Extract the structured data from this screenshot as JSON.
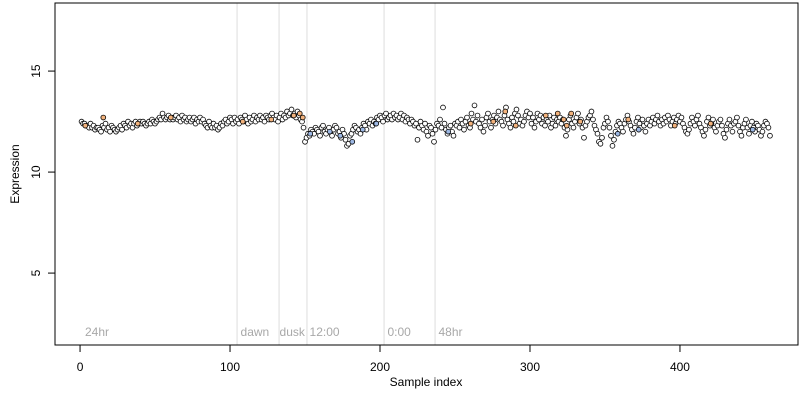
{
  "chart_data": {
    "type": "scatter",
    "x_label": "Sample index",
    "y_label": "Expression",
    "xlim": [
      -16.7,
      478.7
    ],
    "ylim": [
      1.44,
      18.37
    ],
    "xticks": [
      0,
      100,
      200,
      300,
      400
    ],
    "yticks": [
      5,
      10,
      15
    ],
    "vlines": [
      104.7,
      132.7,
      151.3,
      202.7,
      236.7
    ],
    "vline_color": "#dddddd",
    "annotations": [
      {
        "x": 3.3,
        "text": "24hr"
      },
      {
        "x": 107,
        "text": "dawn"
      },
      {
        "x": 133,
        "text": "dusk"
      },
      {
        "x": 153,
        "text": "12:00"
      },
      {
        "x": 205,
        "text": "0:00"
      },
      {
        "x": 239,
        "text": "48hr"
      }
    ],
    "series": [
      {
        "color": "#ffffff",
        "x": [
          1,
          2,
          3,
          4,
          5,
          6,
          7,
          8,
          9,
          10,
          11,
          12,
          13,
          14,
          15,
          16,
          17,
          18,
          19,
          20,
          21,
          22,
          23,
          24,
          25,
          26,
          27,
          28,
          29,
          30,
          31,
          32,
          33,
          34,
          35,
          36,
          37,
          38,
          39,
          40,
          41,
          42,
          43,
          44,
          45,
          46,
          47,
          48,
          49,
          50,
          51,
          52,
          53,
          54,
          55,
          56,
          57,
          58,
          59,
          60,
          61,
          62,
          63,
          64,
          65,
          66,
          67,
          68,
          69,
          70,
          71,
          72,
          73,
          74,
          75,
          76,
          77,
          78,
          79,
          80,
          81,
          82,
          83,
          84,
          85,
          86,
          87,
          88,
          89,
          90,
          91,
          92,
          93,
          94,
          95,
          96,
          97,
          98,
          99,
          100,
          101,
          102,
          103,
          104,
          105,
          106,
          107,
          108,
          109,
          110,
          111,
          112,
          113,
          114,
          115,
          116,
          117,
          118,
          119,
          120,
          121,
          122,
          123,
          124,
          125,
          126,
          127,
          128,
          129,
          130,
          131,
          132,
          133,
          134,
          135,
          136,
          137,
          138,
          139,
          140,
          141,
          142,
          143,
          144,
          145,
          146,
          147,
          148,
          149,
          150,
          151,
          152,
          153,
          154,
          155,
          156,
          157,
          158,
          159,
          160,
          161,
          162,
          163,
          164,
          165,
          166,
          167,
          168,
          169,
          170,
          171,
          172,
          173,
          174,
          175,
          176,
          177,
          178,
          179,
          180,
          181,
          182,
          183,
          184,
          185,
          186,
          187,
          188,
          189,
          190,
          191,
          192,
          193,
          194,
          195,
          196,
          197,
          198,
          199,
          200,
          201,
          202,
          203,
          204,
          205,
          206,
          207,
          208,
          209,
          210,
          211,
          212,
          213,
          214,
          215,
          216,
          217,
          218,
          219,
          220,
          221,
          222,
          223,
          224,
          225,
          226,
          227,
          228,
          229,
          230,
          231,
          232,
          233,
          234,
          235,
          236,
          237,
          238,
          239,
          240,
          241,
          242,
          243,
          244,
          245,
          246,
          247,
          248,
          249,
          250,
          251,
          252,
          253,
          254,
          255,
          256,
          257,
          258,
          259,
          260,
          261,
          262,
          263,
          264,
          265,
          266,
          267,
          268,
          269,
          270,
          271,
          272,
          273,
          274,
          275,
          276,
          277,
          278,
          279,
          280,
          281,
          282,
          283,
          284,
          285,
          286,
          287,
          288,
          289,
          290,
          291,
          292,
          293,
          294,
          295,
          296,
          297,
          298,
          299,
          300,
          301,
          302,
          303,
          304,
          305,
          306,
          307,
          308,
          309,
          310,
          311,
          312,
          313,
          314,
          315,
          316,
          317,
          318,
          319,
          320,
          321,
          322,
          323,
          324,
          325,
          326,
          327,
          328,
          329,
          330,
          331,
          332,
          333,
          334,
          335,
          336,
          337,
          338,
          339,
          340,
          341,
          342,
          343,
          344,
          345,
          346,
          347,
          348,
          349,
          350,
          351,
          352,
          353,
          354,
          355,
          356,
          357,
          358,
          359,
          360,
          361,
          362,
          363,
          364,
          365,
          366,
          367,
          368,
          369,
          370,
          371,
          372,
          373,
          374,
          375,
          376,
          377,
          378,
          379,
          380,
          381,
          382,
          383,
          384,
          385,
          386,
          387,
          388,
          389,
          390,
          391,
          392,
          393,
          394,
          395,
          396,
          397,
          398,
          399,
          400,
          401,
          402,
          403,
          404,
          405,
          406,
          407,
          408,
          409,
          410,
          411,
          412,
          413,
          414,
          415,
          416,
          417,
          418,
          419,
          420,
          421,
          422,
          423,
          424,
          425,
          426,
          427,
          428,
          429,
          430,
          431,
          432,
          433,
          434,
          435,
          436,
          437,
          438,
          439,
          440,
          441,
          442,
          443,
          444,
          445,
          446,
          447,
          448,
          449,
          450,
          451,
          452,
          453,
          454,
          455,
          456,
          457,
          458,
          459,
          460
        ],
        "values": [
          12.5,
          12.4,
          12.4,
          12.3,
          12.3,
          12.2,
          12.4,
          12.2,
          12.3,
          12.1,
          12.2,
          12.2,
          12.1,
          12.0,
          12.3,
          12.2,
          12.4,
          12.1,
          12.2,
          12.0,
          12.3,
          12.2,
          12.1,
          12.0,
          12.1,
          12.2,
          12.3,
          12.1,
          12.4,
          12.3,
          12.2,
          12.5,
          12.3,
          12.4,
          12.2,
          12.4,
          12.5,
          12.3,
          12.4,
          12.5,
          12.4,
          12.5,
          12.4,
          12.3,
          12.4,
          12.5,
          12.4,
          12.6,
          12.5,
          12.4,
          12.5,
          12.6,
          12.7,
          12.6,
          12.9,
          12.7,
          12.6,
          12.7,
          12.8,
          12.6,
          12.7,
          12.6,
          12.7,
          12.8,
          12.6,
          12.7,
          12.5,
          12.8,
          12.6,
          12.7,
          12.5,
          12.6,
          12.7,
          12.5,
          12.6,
          12.7,
          12.4,
          12.6,
          12.5,
          12.7,
          12.5,
          12.6,
          12.4,
          12.3,
          12.2,
          12.5,
          12.3,
          12.2,
          12.4,
          12.2,
          12.3,
          12.1,
          12.2,
          12.4,
          12.3,
          12.5,
          12.6,
          12.4,
          12.5,
          12.7,
          12.6,
          12.4,
          12.7,
          12.5,
          12.6,
          12.4,
          12.7,
          12.6,
          12.5,
          12.8,
          12.6,
          12.4,
          12.7,
          12.5,
          12.6,
          12.8,
          12.5,
          12.7,
          12.6,
          12.8,
          12.6,
          12.7,
          12.5,
          12.8,
          12.7,
          12.6,
          12.8,
          12.9,
          12.7,
          12.6,
          12.8,
          12.5,
          12.7,
          12.9,
          12.6,
          12.8,
          12.7,
          13.0,
          12.8,
          12.9,
          13.1,
          12.8,
          12.9,
          12.7,
          13.0,
          12.8,
          12.6,
          12.5,
          12.2,
          11.5,
          11.7,
          11.9,
          11.8,
          12.1,
          12.0,
          11.9,
          12.2,
          12.1,
          12.0,
          11.8,
          12.2,
          12.3,
          12.0,
          11.9,
          12.1,
          12.2,
          12.0,
          11.8,
          12.1,
          12.3,
          12.2,
          11.9,
          12.0,
          11.7,
          12.1,
          11.9,
          11.6,
          11.3,
          11.4,
          11.8,
          11.9,
          12.1,
          12.3,
          12.2,
          12.0,
          12.1,
          11.9,
          12.2,
          12.4,
          12.3,
          12.1,
          12.5,
          12.4,
          12.6,
          12.3,
          12.5,
          12.4,
          12.7,
          12.6,
          12.8,
          12.7,
          12.5,
          12.8,
          12.9,
          12.6,
          12.7,
          12.8,
          12.6,
          12.9,
          12.7,
          12.8,
          12.6,
          12.7,
          12.9,
          12.6,
          12.8,
          12.5,
          12.7,
          12.6,
          12.4,
          12.6,
          12.5,
          12.3,
          12.4,
          11.6,
          12.2,
          12.5,
          12.3,
          12.1,
          12.4,
          12.0,
          11.8,
          12.3,
          12.2,
          11.9,
          11.5,
          12.1,
          12.4,
          12.3,
          12.6,
          12.2,
          13.2,
          12.4,
          12.1,
          11.9,
          12.2,
          12.3,
          12.0,
          11.8,
          12.4,
          12.3,
          12.5,
          12.2,
          12.6,
          12.4,
          12.1,
          12.5,
          12.7,
          12.3,
          12.2,
          12.9,
          12.6,
          13.3,
          12.5,
          12.8,
          12.4,
          12.2,
          12.6,
          12.0,
          12.3,
          12.7,
          12.9,
          12.5,
          12.2,
          12.6,
          12.8,
          12.4,
          12.7,
          13.0,
          12.6,
          12.5,
          12.3,
          12.8,
          13.2,
          12.6,
          12.4,
          12.2,
          12.7,
          12.5,
          12.9,
          13.1,
          12.8,
          12.4,
          12.6,
          12.3,
          12.5,
          12.8,
          13.0,
          12.7,
          12.9,
          12.4,
          12.7,
          12.2,
          12.5,
          12.9,
          12.6,
          12.8,
          12.4,
          12.7,
          12.3,
          12.6,
          12.5,
          12.8,
          12.2,
          12.4,
          12.7,
          12.3,
          12.6,
          12.5,
          12.7,
          12.4,
          12.6,
          12.2,
          11.8,
          12.1,
          12.6,
          12.8,
          12.4,
          12.2,
          12.5,
          12.7,
          12.9,
          12.4,
          12.6,
          12.2,
          11.7,
          12.3,
          12.5,
          12.7,
          12.8,
          13.0,
          12.6,
          12.3,
          12.1,
          11.9,
          11.5,
          11.4,
          11.7,
          12.2,
          12.4,
          12.7,
          12.5,
          12.2,
          11.8,
          11.3,
          11.6,
          12.0,
          12.3,
          12.5,
          12.4,
          12.2,
          12.0,
          12.4,
          12.6,
          12.8,
          12.5,
          12.3,
          12.1,
          11.9,
          12.2,
          12.5,
          12.7,
          12.4,
          12.2,
          12.6,
          12.3,
          12.0,
          12.4,
          12.6,
          12.3,
          12.5,
          12.7,
          12.4,
          12.6,
          12.8,
          12.5,
          12.3,
          12.6,
          12.4,
          12.7,
          12.5,
          12.8,
          12.6,
          12.3,
          12.5,
          12.7,
          12.4,
          12.6,
          12.8,
          12.5,
          12.7,
          12.4,
          12.2,
          12.0,
          11.9,
          12.1,
          12.4,
          12.7,
          12.5,
          12.3,
          12.6,
          12.8,
          12.4,
          12.2,
          12.0,
          11.8,
          12.1,
          12.5,
          12.7,
          12.3,
          12.4,
          12.6,
          12.2,
          12.0,
          12.3,
          12.5,
          12.6,
          12.3,
          11.9,
          11.7,
          12.1,
          12.4,
          12.6,
          12.3,
          12.0,
          12.4,
          12.5,
          12.7,
          12.3,
          12.0,
          11.8,
          12.2,
          12.4,
          12.6,
          12.2,
          11.9,
          12.3,
          12.5,
          12.2,
          12.0,
          12.4,
          12.3,
          12.1,
          11.8,
          12.0,
          12.3,
          12.5,
          12.4,
          12.2,
          11.8
        ]
      },
      {
        "color": "#f2b27c",
        "x": [
          3.5,
          15.5,
          38.5,
          60.5,
          108.5,
          127.5,
          142.5,
          146.5,
          148.5,
          260.5,
          275.5,
          283.5,
          290.5,
          310.5,
          318.5,
          322.5,
          324.5,
          327.5,
          333.5,
          365.5,
          396.5,
          420.5
        ],
        "values": [
          12.3,
          12.7,
          12.4,
          12.7,
          12.5,
          12.6,
          12.8,
          12.9,
          12.7,
          12.4,
          12.5,
          13.0,
          12.3,
          12.8,
          12.9,
          12.6,
          12.3,
          12.9,
          12.5,
          12.6,
          12.3,
          12.4
        ]
      },
      {
        "color": "#9db8e4",
        "x": [
          153.5,
          166.5,
          173.5,
          181.5,
          188.5,
          197.5,
          245.5,
          358.5,
          372.5,
          448.5
        ],
        "values": [
          11.9,
          12.0,
          11.8,
          11.5,
          12.1,
          12.4,
          12.0,
          11.9,
          12.1,
          12.1
        ]
      }
    ]
  }
}
